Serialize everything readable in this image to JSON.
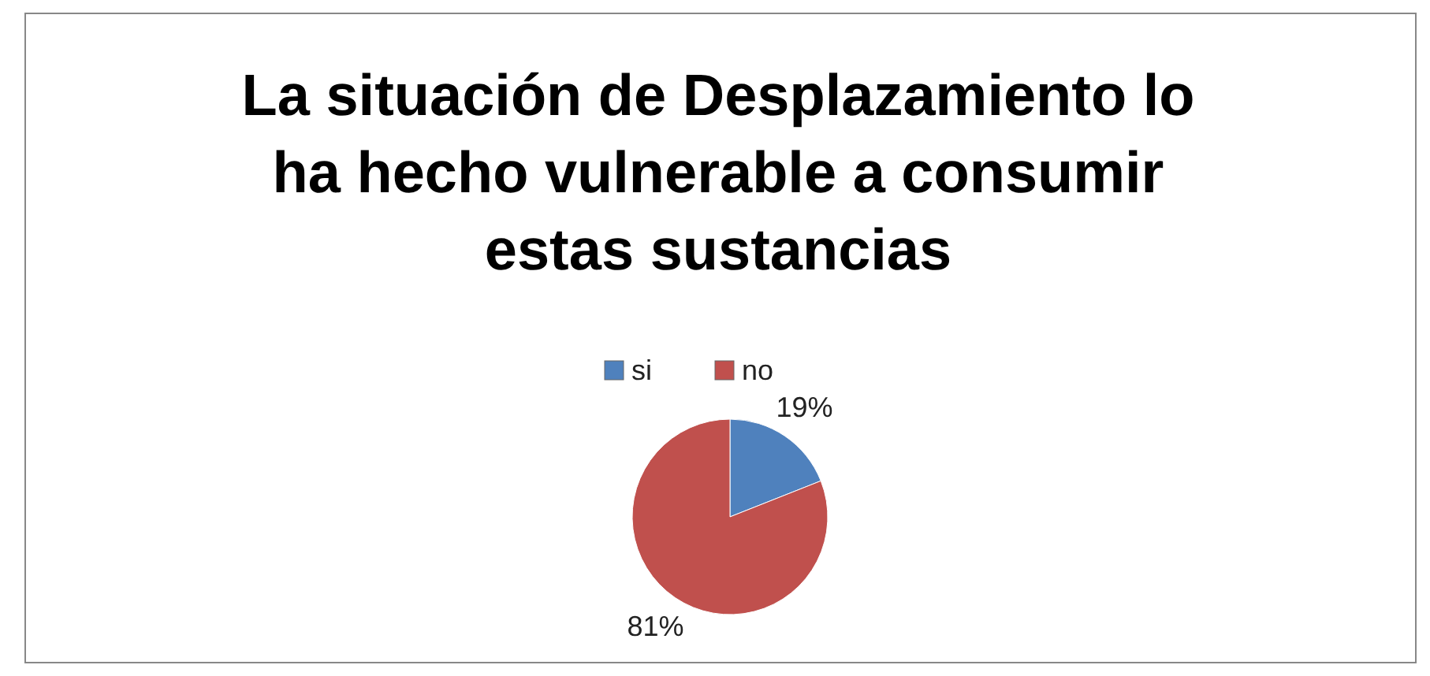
{
  "chart_data": {
    "type": "pie",
    "title": "La situación de Desplazamiento lo ha hecho vulnerable a consumir estas sustancias",
    "categories": [
      "si",
      "no"
    ],
    "values": [
      19,
      81
    ],
    "colors": [
      "#4f81bd",
      "#c0504d"
    ],
    "value_labels": [
      "19%",
      "81%"
    ],
    "legend": "top"
  }
}
